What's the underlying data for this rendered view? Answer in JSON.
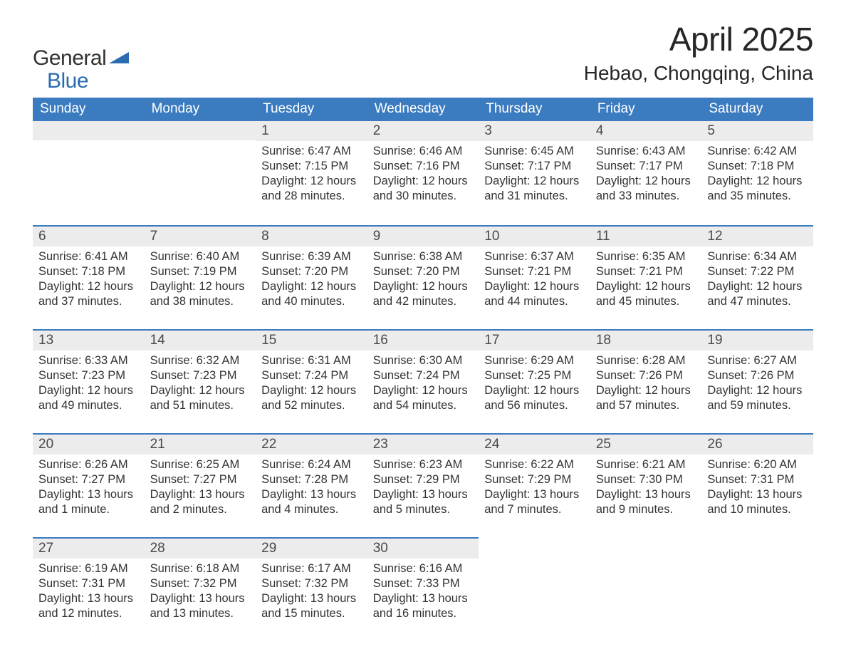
{
  "logo": {
    "general": "General",
    "blue": "Blue",
    "tri_color": "#2a6cb0"
  },
  "title": "April 2025",
  "location": "Hebao, Chongqing, China",
  "colors": {
    "header_bg": "#3b7bbf",
    "header_text": "#ffffff",
    "daynum_bg": "#ececec",
    "border_top": "#3b7bbf",
    "body_text": "#333333",
    "page_bg": "#ffffff"
  },
  "columns": [
    "Sunday",
    "Monday",
    "Tuesday",
    "Wednesday",
    "Thursday",
    "Friday",
    "Saturday"
  ],
  "weeks": [
    [
      {
        "day": "",
        "lines": []
      },
      {
        "day": "",
        "lines": []
      },
      {
        "day": "1",
        "lines": [
          "Sunrise: 6:47 AM",
          "Sunset: 7:15 PM",
          "Daylight: 12 hours and 28 minutes."
        ]
      },
      {
        "day": "2",
        "lines": [
          "Sunrise: 6:46 AM",
          "Sunset: 7:16 PM",
          "Daylight: 12 hours and 30 minutes."
        ]
      },
      {
        "day": "3",
        "lines": [
          "Sunrise: 6:45 AM",
          "Sunset: 7:17 PM",
          "Daylight: 12 hours and 31 minutes."
        ]
      },
      {
        "day": "4",
        "lines": [
          "Sunrise: 6:43 AM",
          "Sunset: 7:17 PM",
          "Daylight: 12 hours and 33 minutes."
        ]
      },
      {
        "day": "5",
        "lines": [
          "Sunrise: 6:42 AM",
          "Sunset: 7:18 PM",
          "Daylight: 12 hours and 35 minutes."
        ]
      }
    ],
    [
      {
        "day": "6",
        "lines": [
          "Sunrise: 6:41 AM",
          "Sunset: 7:18 PM",
          "Daylight: 12 hours and 37 minutes."
        ]
      },
      {
        "day": "7",
        "lines": [
          "Sunrise: 6:40 AM",
          "Sunset: 7:19 PM",
          "Daylight: 12 hours and 38 minutes."
        ]
      },
      {
        "day": "8",
        "lines": [
          "Sunrise: 6:39 AM",
          "Sunset: 7:20 PM",
          "Daylight: 12 hours and 40 minutes."
        ]
      },
      {
        "day": "9",
        "lines": [
          "Sunrise: 6:38 AM",
          "Sunset: 7:20 PM",
          "Daylight: 12 hours and 42 minutes."
        ]
      },
      {
        "day": "10",
        "lines": [
          "Sunrise: 6:37 AM",
          "Sunset: 7:21 PM",
          "Daylight: 12 hours and 44 minutes."
        ]
      },
      {
        "day": "11",
        "lines": [
          "Sunrise: 6:35 AM",
          "Sunset: 7:21 PM",
          "Daylight: 12 hours and 45 minutes."
        ]
      },
      {
        "day": "12",
        "lines": [
          "Sunrise: 6:34 AM",
          "Sunset: 7:22 PM",
          "Daylight: 12 hours and 47 minutes."
        ]
      }
    ],
    [
      {
        "day": "13",
        "lines": [
          "Sunrise: 6:33 AM",
          "Sunset: 7:23 PM",
          "Daylight: 12 hours and 49 minutes."
        ]
      },
      {
        "day": "14",
        "lines": [
          "Sunrise: 6:32 AM",
          "Sunset: 7:23 PM",
          "Daylight: 12 hours and 51 minutes."
        ]
      },
      {
        "day": "15",
        "lines": [
          "Sunrise: 6:31 AM",
          "Sunset: 7:24 PM",
          "Daylight: 12 hours and 52 minutes."
        ]
      },
      {
        "day": "16",
        "lines": [
          "Sunrise: 6:30 AM",
          "Sunset: 7:24 PM",
          "Daylight: 12 hours and 54 minutes."
        ]
      },
      {
        "day": "17",
        "lines": [
          "Sunrise: 6:29 AM",
          "Sunset: 7:25 PM",
          "Daylight: 12 hours and 56 minutes."
        ]
      },
      {
        "day": "18",
        "lines": [
          "Sunrise: 6:28 AM",
          "Sunset: 7:26 PM",
          "Daylight: 12 hours and 57 minutes."
        ]
      },
      {
        "day": "19",
        "lines": [
          "Sunrise: 6:27 AM",
          "Sunset: 7:26 PM",
          "Daylight: 12 hours and 59 minutes."
        ]
      }
    ],
    [
      {
        "day": "20",
        "lines": [
          "Sunrise: 6:26 AM",
          "Sunset: 7:27 PM",
          "Daylight: 13 hours and 1 minute."
        ]
      },
      {
        "day": "21",
        "lines": [
          "Sunrise: 6:25 AM",
          "Sunset: 7:27 PM",
          "Daylight: 13 hours and 2 minutes."
        ]
      },
      {
        "day": "22",
        "lines": [
          "Sunrise: 6:24 AM",
          "Sunset: 7:28 PM",
          "Daylight: 13 hours and 4 minutes."
        ]
      },
      {
        "day": "23",
        "lines": [
          "Sunrise: 6:23 AM",
          "Sunset: 7:29 PM",
          "Daylight: 13 hours and 5 minutes."
        ]
      },
      {
        "day": "24",
        "lines": [
          "Sunrise: 6:22 AM",
          "Sunset: 7:29 PM",
          "Daylight: 13 hours and 7 minutes."
        ]
      },
      {
        "day": "25",
        "lines": [
          "Sunrise: 6:21 AM",
          "Sunset: 7:30 PM",
          "Daylight: 13 hours and 9 minutes."
        ]
      },
      {
        "day": "26",
        "lines": [
          "Sunrise: 6:20 AM",
          "Sunset: 7:31 PM",
          "Daylight: 13 hours and 10 minutes."
        ]
      }
    ],
    [
      {
        "day": "27",
        "lines": [
          "Sunrise: 6:19 AM",
          "Sunset: 7:31 PM",
          "Daylight: 13 hours and 12 minutes."
        ]
      },
      {
        "day": "28",
        "lines": [
          "Sunrise: 6:18 AM",
          "Sunset: 7:32 PM",
          "Daylight: 13 hours and 13 minutes."
        ]
      },
      {
        "day": "29",
        "lines": [
          "Sunrise: 6:17 AM",
          "Sunset: 7:32 PM",
          "Daylight: 13 hours and 15 minutes."
        ]
      },
      {
        "day": "30",
        "lines": [
          "Sunrise: 6:16 AM",
          "Sunset: 7:33 PM",
          "Daylight: 13 hours and 16 minutes."
        ]
      },
      {
        "day": "",
        "lines": []
      },
      {
        "day": "",
        "lines": []
      },
      {
        "day": "",
        "lines": []
      }
    ]
  ]
}
